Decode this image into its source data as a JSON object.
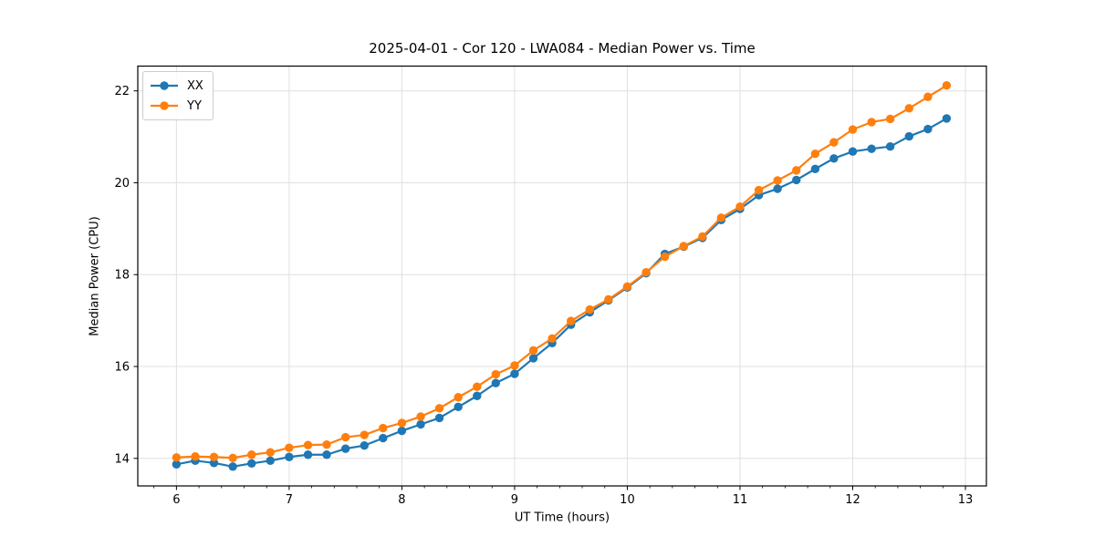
{
  "figure": {
    "title": "2025-04-01 - Cor 120 - LWA084 - Median Power vs. Time"
  },
  "chart_data": {
    "type": "line",
    "title": "2025-04-01 - Cor 120 - LWA084 - Median Power vs. Time",
    "xlabel": "UT Time (hours)",
    "ylabel": "Median Power (CPU)",
    "xlim": [
      5.657,
      13.186
    ],
    "ylim": [
      13.4,
      22.54
    ],
    "x_major_ticks": [
      6,
      7,
      8,
      9,
      10,
      11,
      12,
      13
    ],
    "x_minor_tick_step": 0.2,
    "y_major_ticks": [
      14,
      16,
      18,
      20,
      22
    ],
    "grid": true,
    "legend_position": "upper left",
    "marker": "circle",
    "x": [
      6.0,
      6.167,
      6.333,
      6.5,
      6.667,
      6.833,
      7.0,
      7.167,
      7.333,
      7.5,
      7.667,
      7.833,
      8.0,
      8.167,
      8.333,
      8.5,
      8.667,
      8.833,
      9.0,
      9.167,
      9.333,
      9.5,
      9.667,
      9.833,
      10.0,
      10.167,
      10.333,
      10.5,
      10.667,
      10.833,
      11.0,
      11.167,
      11.333,
      11.5,
      11.667,
      11.833,
      12.0,
      12.167,
      12.333,
      12.5,
      12.667,
      12.833
    ],
    "series": [
      {
        "name": "XX",
        "color": "#1f77b4",
        "values": [
          13.87,
          13.95,
          13.9,
          13.82,
          13.89,
          13.95,
          14.03,
          14.08,
          14.08,
          14.21,
          14.28,
          14.44,
          14.6,
          14.74,
          14.88,
          15.12,
          15.36,
          15.64,
          15.84,
          16.18,
          16.51,
          16.91,
          17.18,
          17.44,
          17.72,
          18.03,
          18.45,
          18.61,
          18.8,
          19.19,
          19.43,
          19.73,
          19.87,
          20.06,
          20.3,
          20.53,
          20.68,
          20.74,
          20.79,
          21.01,
          21.17,
          21.4
        ]
      },
      {
        "name": "YY",
        "color": "#ff7f0e",
        "values": [
          14.02,
          14.04,
          14.03,
          14.01,
          14.08,
          14.13,
          14.23,
          14.29,
          14.3,
          14.46,
          14.51,
          14.66,
          14.77,
          14.91,
          15.09,
          15.33,
          15.56,
          15.83,
          16.02,
          16.35,
          16.61,
          16.99,
          17.24,
          17.46,
          17.74,
          18.05,
          18.39,
          18.62,
          18.83,
          19.24,
          19.48,
          19.84,
          20.05,
          20.27,
          20.63,
          20.88,
          21.16,
          21.32,
          21.39,
          21.62,
          21.87,
          22.12
        ]
      }
    ]
  }
}
